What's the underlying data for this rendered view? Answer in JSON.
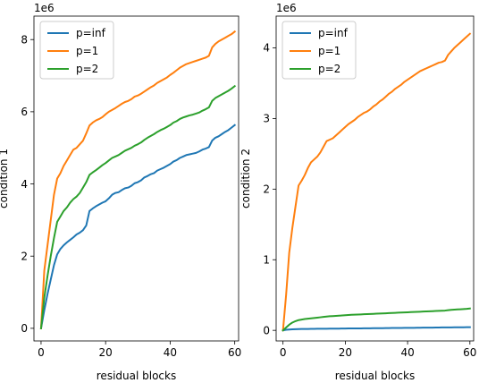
{
  "chart_data": [
    {
      "type": "line",
      "title": "",
      "xlabel": "residual blocks",
      "ylabel": "condition 1",
      "offset_text": "1e6",
      "xlim": [
        -2.2,
        61.2
      ],
      "ylim": [
        -0.35,
        8.65
      ],
      "xticks": [
        0,
        20,
        40,
        60
      ],
      "yticks": [
        0,
        2,
        4,
        6,
        8
      ],
      "legend_position": "upper left",
      "grid": false,
      "series": [
        {
          "name": "p=inf",
          "color": "#1f77b4",
          "x": [
            0,
            1,
            2,
            3,
            4,
            5,
            6,
            7,
            8,
            9,
            10,
            11,
            12,
            13,
            14,
            15,
            16,
            17,
            18,
            19,
            20,
            21,
            22,
            23,
            24,
            25,
            26,
            27,
            28,
            29,
            30,
            31,
            32,
            33,
            34,
            35,
            36,
            37,
            38,
            39,
            40,
            41,
            42,
            43,
            44,
            45,
            46,
            47,
            48,
            49,
            50,
            51,
            52,
            53,
            54,
            55,
            56,
            57,
            58,
            59,
            60
          ],
          "values": [
            0.0,
            0.5,
            0.95,
            1.35,
            1.75,
            2.05,
            2.2,
            2.3,
            2.38,
            2.45,
            2.52,
            2.6,
            2.65,
            2.72,
            2.85,
            3.25,
            3.32,
            3.38,
            3.43,
            3.48,
            3.52,
            3.6,
            3.7,
            3.75,
            3.77,
            3.83,
            3.88,
            3.9,
            3.95,
            4.02,
            4.05,
            4.1,
            4.18,
            4.22,
            4.27,
            4.3,
            4.37,
            4.41,
            4.45,
            4.5,
            4.55,
            4.62,
            4.66,
            4.72,
            4.76,
            4.8,
            4.82,
            4.84,
            4.86,
            4.9,
            4.95,
            4.98,
            5.02,
            5.2,
            5.28,
            5.32,
            5.38,
            5.44,
            5.49,
            5.56,
            5.63
          ]
        },
        {
          "name": "p=1",
          "color": "#ff7f0e",
          "x": [
            0,
            1,
            2,
            3,
            4,
            5,
            6,
            7,
            8,
            9,
            10,
            11,
            12,
            13,
            14,
            15,
            16,
            17,
            18,
            19,
            20,
            21,
            22,
            23,
            24,
            25,
            26,
            27,
            28,
            29,
            30,
            31,
            32,
            33,
            34,
            35,
            36,
            37,
            38,
            39,
            40,
            41,
            42,
            43,
            44,
            45,
            46,
            47,
            48,
            49,
            50,
            51,
            52,
            53,
            54,
            55,
            56,
            57,
            58,
            59,
            60
          ],
          "values": [
            0.0,
            1.6,
            2.3,
            3.0,
            3.7,
            4.15,
            4.3,
            4.5,
            4.65,
            4.8,
            4.95,
            5.0,
            5.1,
            5.2,
            5.4,
            5.62,
            5.7,
            5.76,
            5.8,
            5.85,
            5.93,
            6.0,
            6.05,
            6.1,
            6.16,
            6.22,
            6.27,
            6.3,
            6.35,
            6.42,
            6.45,
            6.5,
            6.56,
            6.62,
            6.68,
            6.73,
            6.8,
            6.85,
            6.9,
            6.95,
            7.02,
            7.08,
            7.15,
            7.22,
            7.27,
            7.32,
            7.35,
            7.38,
            7.41,
            7.44,
            7.47,
            7.5,
            7.55,
            7.78,
            7.88,
            7.95,
            8.0,
            8.05,
            8.1,
            8.15,
            8.22
          ]
        },
        {
          "name": "p=2",
          "color": "#2ca02c",
          "x": [
            0,
            1,
            2,
            3,
            4,
            5,
            6,
            7,
            8,
            9,
            10,
            11,
            12,
            13,
            14,
            15,
            16,
            17,
            18,
            19,
            20,
            21,
            22,
            23,
            24,
            25,
            26,
            27,
            28,
            29,
            30,
            31,
            32,
            33,
            34,
            35,
            36,
            37,
            38,
            39,
            40,
            41,
            42,
            43,
            44,
            45,
            46,
            47,
            48,
            49,
            50,
            51,
            52,
            53,
            54,
            55,
            56,
            57,
            58,
            59,
            60
          ],
          "values": [
            0.0,
            0.85,
            1.45,
            2.0,
            2.5,
            2.95,
            3.1,
            3.25,
            3.35,
            3.48,
            3.58,
            3.65,
            3.75,
            3.9,
            4.05,
            4.25,
            4.32,
            4.38,
            4.45,
            4.52,
            4.58,
            4.65,
            4.72,
            4.76,
            4.8,
            4.86,
            4.92,
            4.96,
            5.0,
            5.06,
            5.1,
            5.15,
            5.22,
            5.28,
            5.33,
            5.38,
            5.44,
            5.49,
            5.53,
            5.58,
            5.63,
            5.7,
            5.74,
            5.8,
            5.84,
            5.87,
            5.9,
            5.92,
            5.95,
            5.98,
            6.03,
            6.07,
            6.12,
            6.3,
            6.38,
            6.43,
            6.48,
            6.53,
            6.58,
            6.64,
            6.71
          ]
        }
      ]
    },
    {
      "type": "line",
      "title": "",
      "xlabel": "residual blocks",
      "ylabel": "condition 2",
      "offset_text": "1e6",
      "xlim": [
        -2.2,
        61.2
      ],
      "ylim": [
        -0.15,
        4.45
      ],
      "xticks": [
        0,
        20,
        40,
        60
      ],
      "yticks": [
        0,
        1,
        2,
        3,
        4
      ],
      "legend_position": "upper left",
      "grid": false,
      "series": [
        {
          "name": "p=inf",
          "color": "#1f77b4",
          "x": [
            0,
            1,
            2,
            3,
            4,
            5,
            6,
            7,
            8,
            9,
            10,
            11,
            12,
            13,
            14,
            15,
            16,
            17,
            18,
            19,
            20,
            21,
            22,
            23,
            24,
            25,
            26,
            27,
            28,
            29,
            30,
            31,
            32,
            33,
            34,
            35,
            36,
            37,
            38,
            39,
            40,
            41,
            42,
            43,
            44,
            45,
            46,
            47,
            48,
            49,
            50,
            51,
            52,
            53,
            54,
            55,
            56,
            57,
            58,
            59,
            60
          ],
          "values": [
            0.0,
            0.008,
            0.012,
            0.015,
            0.017,
            0.018,
            0.019,
            0.02,
            0.02,
            0.021,
            0.021,
            0.022,
            0.022,
            0.023,
            0.023,
            0.024,
            0.024,
            0.025,
            0.025,
            0.026,
            0.026,
            0.027,
            0.027,
            0.027,
            0.028,
            0.028,
            0.029,
            0.029,
            0.029,
            0.03,
            0.03,
            0.031,
            0.031,
            0.032,
            0.032,
            0.033,
            0.033,
            0.034,
            0.034,
            0.035,
            0.035,
            0.036,
            0.036,
            0.037,
            0.037,
            0.038,
            0.038,
            0.039,
            0.039,
            0.04,
            0.04,
            0.041,
            0.041,
            0.042,
            0.042,
            0.043,
            0.043,
            0.044,
            0.044,
            0.045,
            0.045
          ]
        },
        {
          "name": "p=1",
          "color": "#ff7f0e",
          "x": [
            0,
            1,
            2,
            3,
            4,
            5,
            6,
            7,
            8,
            9,
            10,
            11,
            12,
            13,
            14,
            15,
            16,
            17,
            18,
            19,
            20,
            21,
            22,
            23,
            24,
            25,
            26,
            27,
            28,
            29,
            30,
            31,
            32,
            33,
            34,
            35,
            36,
            37,
            38,
            39,
            40,
            41,
            42,
            43,
            44,
            45,
            46,
            47,
            48,
            49,
            50,
            51,
            52,
            53,
            54,
            55,
            56,
            57,
            58,
            59,
            60
          ],
          "values": [
            0.0,
            0.5,
            1.1,
            1.45,
            1.75,
            2.05,
            2.12,
            2.2,
            2.3,
            2.38,
            2.42,
            2.46,
            2.52,
            2.6,
            2.68,
            2.7,
            2.72,
            2.76,
            2.8,
            2.84,
            2.88,
            2.92,
            2.95,
            2.98,
            3.02,
            3.05,
            3.08,
            3.1,
            3.13,
            3.17,
            3.2,
            3.24,
            3.27,
            3.31,
            3.35,
            3.38,
            3.42,
            3.45,
            3.48,
            3.52,
            3.55,
            3.58,
            3.61,
            3.64,
            3.67,
            3.69,
            3.71,
            3.73,
            3.75,
            3.77,
            3.79,
            3.8,
            3.82,
            3.9,
            3.95,
            4.0,
            4.04,
            4.08,
            4.12,
            4.16,
            4.2
          ]
        },
        {
          "name": "p=2",
          "color": "#2ca02c",
          "x": [
            0,
            1,
            2,
            3,
            4,
            5,
            6,
            7,
            8,
            9,
            10,
            11,
            12,
            13,
            14,
            15,
            16,
            17,
            18,
            19,
            20,
            21,
            22,
            23,
            24,
            25,
            26,
            27,
            28,
            29,
            30,
            31,
            32,
            33,
            34,
            35,
            36,
            37,
            38,
            39,
            40,
            41,
            42,
            43,
            44,
            45,
            46,
            47,
            48,
            49,
            50,
            51,
            52,
            53,
            54,
            55,
            56,
            57,
            58,
            59,
            60
          ],
          "values": [
            0.0,
            0.04,
            0.08,
            0.11,
            0.13,
            0.145,
            0.153,
            0.16,
            0.165,
            0.17,
            0.175,
            0.18,
            0.185,
            0.19,
            0.195,
            0.2,
            0.202,
            0.205,
            0.208,
            0.211,
            0.214,
            0.217,
            0.22,
            0.222,
            0.224,
            0.226,
            0.228,
            0.23,
            0.232,
            0.234,
            0.236,
            0.238,
            0.24,
            0.242,
            0.244,
            0.246,
            0.248,
            0.25,
            0.252,
            0.254,
            0.256,
            0.258,
            0.26,
            0.262,
            0.264,
            0.266,
            0.268,
            0.27,
            0.272,
            0.274,
            0.276,
            0.278,
            0.28,
            0.286,
            0.29,
            0.293,
            0.296,
            0.299,
            0.302,
            0.305,
            0.31
          ]
        }
      ]
    }
  ]
}
